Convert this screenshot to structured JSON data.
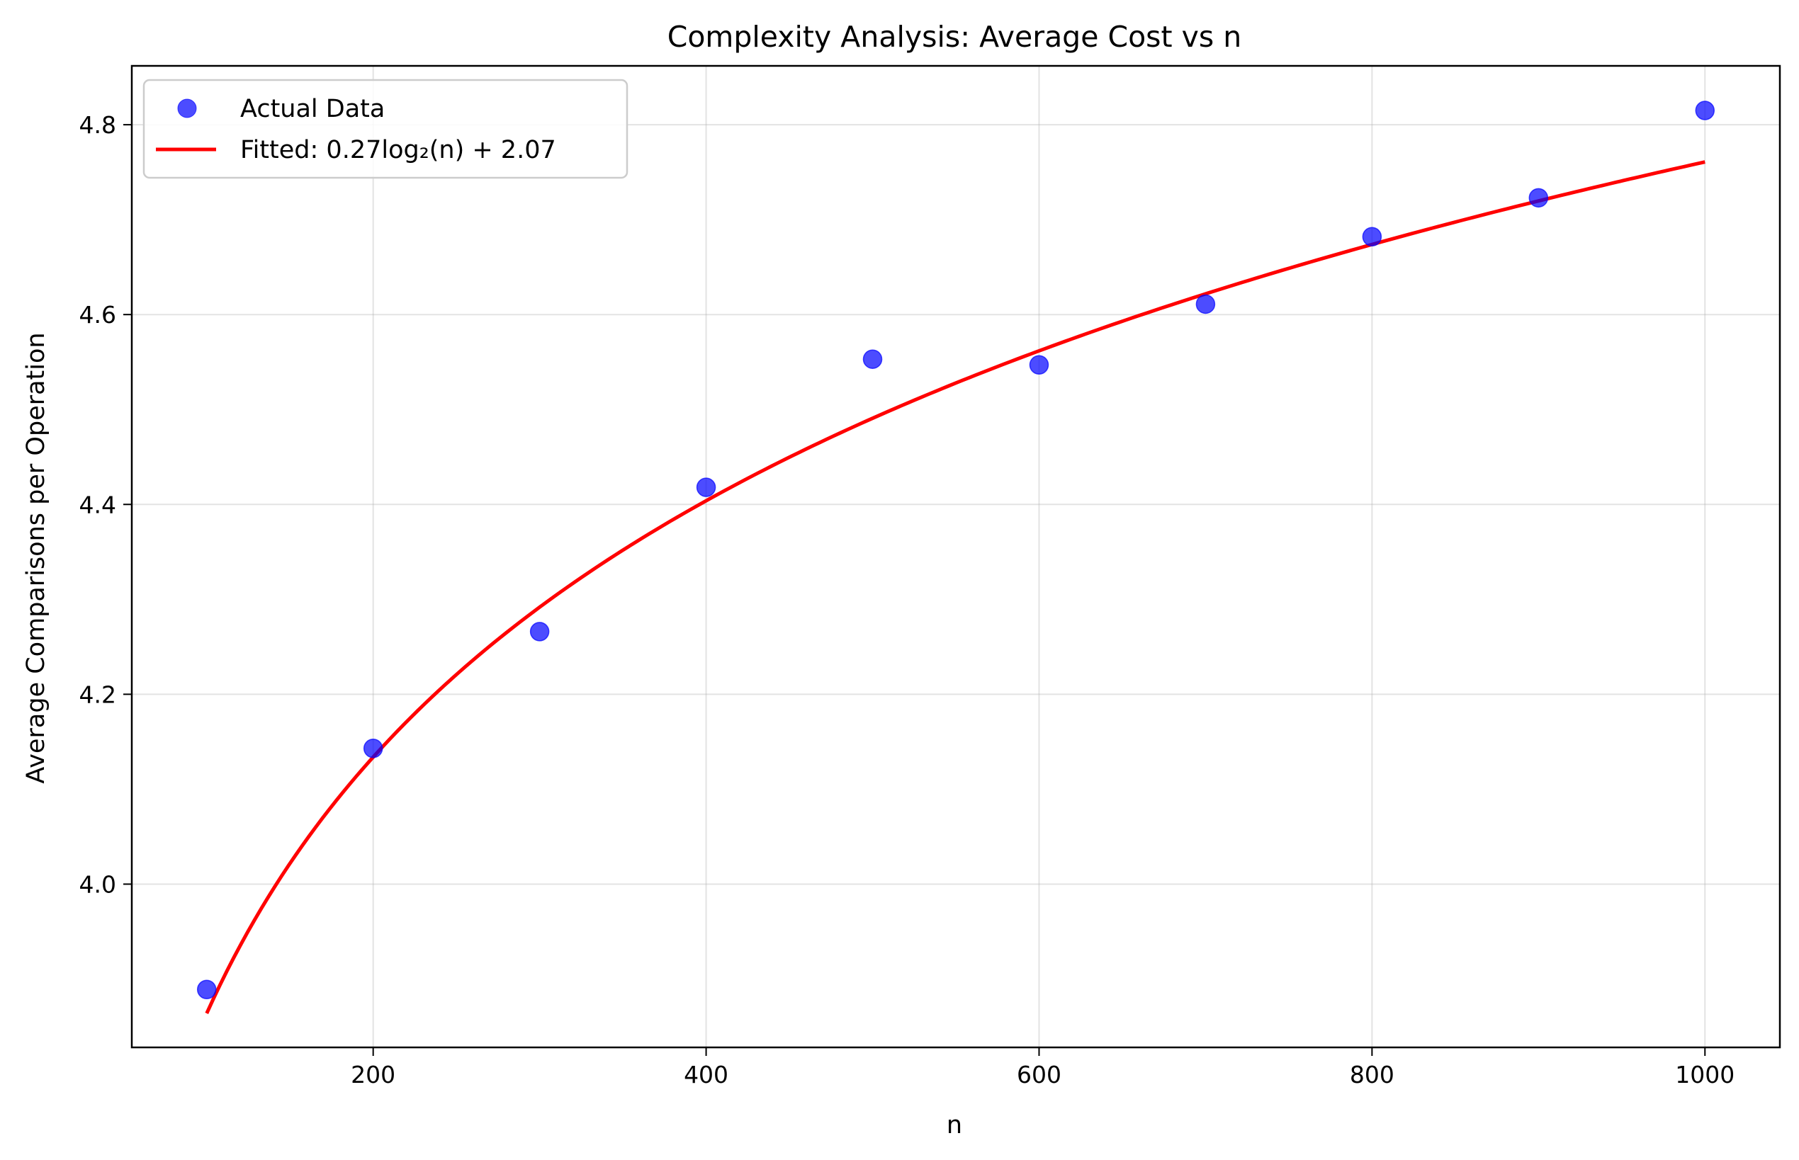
{
  "chart_data": {
    "type": "scatter",
    "title": "Complexity Analysis: Average Cost vs n",
    "xlabel": "n",
    "ylabel": "Average Comparisons per Operation",
    "xlim": [
      55,
      1045
    ],
    "ylim": [
      3.828,
      4.862
    ],
    "xticks": [
      200,
      400,
      600,
      800,
      1000
    ],
    "yticks": [
      4.0,
      4.2,
      4.4,
      4.6,
      4.8
    ],
    "xtick_labels": [
      "200",
      "400",
      "600",
      "800",
      "1000"
    ],
    "ytick_labels": [
      "4.0",
      "4.2",
      "4.4",
      "4.6",
      "4.8"
    ],
    "grid": true,
    "legend_position": "top-left",
    "series": [
      {
        "name": "Actual Data",
        "kind": "scatter",
        "color": "#0000ff",
        "x": [
          100,
          200,
          300,
          400,
          500,
          600,
          700,
          800,
          900,
          1000
        ],
        "y": [
          3.889,
          4.143,
          4.266,
          4.418,
          4.553,
          4.547,
          4.611,
          4.682,
          4.723,
          4.815
        ]
      },
      {
        "name": "Fitted: 0.27log₂(n) + 2.07",
        "kind": "line",
        "color": "#ff0000",
        "equation": {
          "a": 0.27,
          "b": 2.07,
          "log_base": 2
        },
        "x_range": [
          100,
          1000
        ]
      }
    ]
  }
}
